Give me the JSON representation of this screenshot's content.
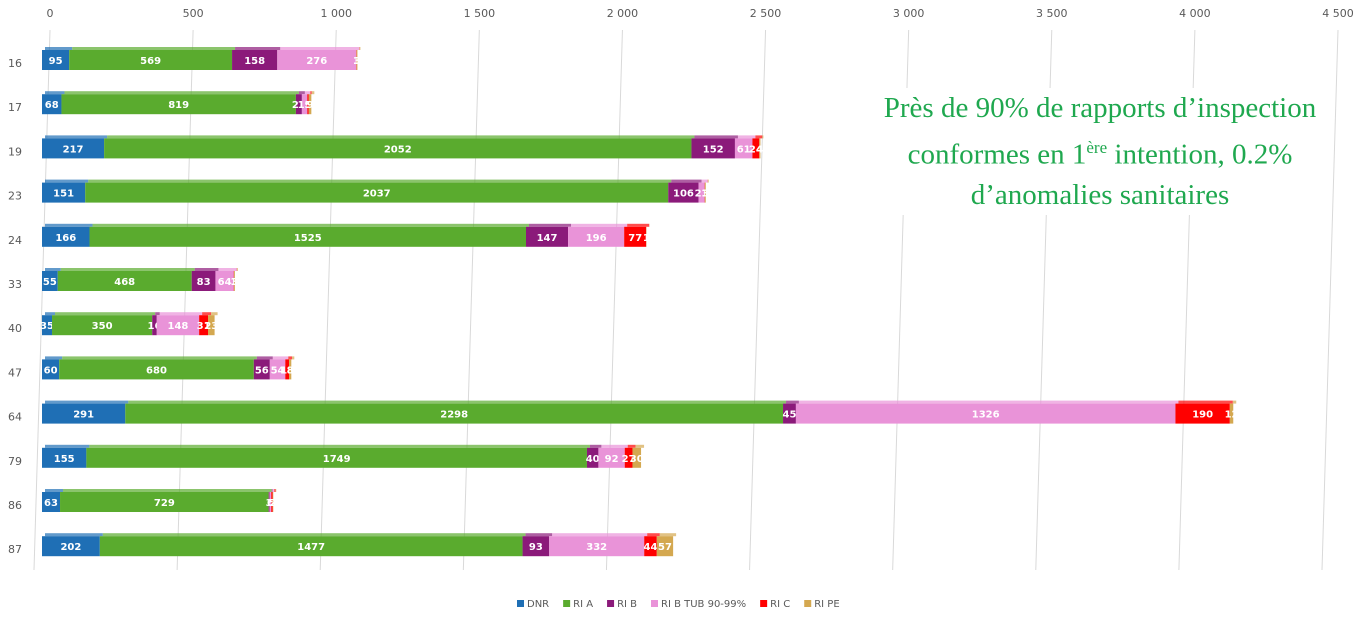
{
  "chart_data": {
    "type": "stacked_bar_horizontal",
    "categories": [
      "16",
      "17",
      "19",
      "23",
      "24",
      "33",
      "40",
      "47",
      "64",
      "79",
      "86",
      "87"
    ],
    "series": [
      {
        "name": "DNR",
        "color": "#1f6fb5",
        "values": [
          95,
          68,
          217,
          151,
          166,
          55,
          35,
          60,
          291,
          155,
          63,
          202
        ]
      },
      {
        "name": "RI A",
        "color": "#5aab2e",
        "values": [
          569,
          819,
          2052,
          2037,
          1525,
          468,
          350,
          680,
          2298,
          1749,
          729,
          1477
        ]
      },
      {
        "name": "RI B",
        "color": "#8b1a7a",
        "values": [
          158,
          21,
          152,
          106,
          147,
          83,
          16,
          56,
          45,
          40,
          3,
          93
        ]
      },
      {
        "name": "RI B TUB 90-99%",
        "color": "#e993d8",
        "values": [
          276,
          19,
          61,
          21,
          196,
          64,
          148,
          54,
          1326,
          92,
          6,
          332
        ]
      },
      {
        "name": "RI C",
        "color": "#ff0000",
        "values": [
          1,
          5,
          24,
          1,
          77,
          1,
          31,
          13,
          190,
          27,
          5,
          44
        ]
      },
      {
        "name": "RI PE",
        "color": "#d4a850",
        "values": [
          3,
          9,
          4,
          3,
          1,
          3,
          23,
          8,
          12,
          30,
          2,
          57
        ]
      }
    ],
    "xlim": [
      0,
      4500
    ],
    "xticks": [
      0,
      500,
      {
        "value": 1000,
        "label": "1 000"
      },
      {
        "value": 1500,
        "label": "1 500"
      },
      {
        "value": 2000,
        "label": "2 000"
      },
      {
        "value": 2500,
        "label": "2 500"
      },
      {
        "value": 3000,
        "label": "3 000"
      },
      {
        "value": 3500,
        "label": "3 500"
      },
      {
        "value": 4000,
        "label": "4 000"
      },
      {
        "value": 4500,
        "label": "4 500"
      }
    ],
    "grid": true,
    "legend": "bottom",
    "annotation": {
      "text": "Près de 90% de rapports d’inspection conformes en 1",
      "superscript": "ère",
      "text_after": "intention, 0.2% d’anomalies sanitaires"
    }
  }
}
